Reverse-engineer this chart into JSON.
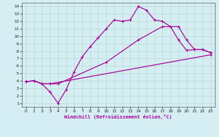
{
  "xlabel": "Windchill (Refroidissement éolien,°C)",
  "bg_color": "#d4eef4",
  "line_color": "#aa0099",
  "grid_color": "#b8d8cc",
  "xlim": [
    -0.5,
    23.5
  ],
  "ylim": [
    0.5,
    14.5
  ],
  "xticks": [
    0,
    1,
    2,
    3,
    4,
    5,
    6,
    7,
    8,
    9,
    10,
    11,
    12,
    13,
    14,
    15,
    16,
    17,
    18,
    19,
    20,
    21,
    22,
    23
  ],
  "yticks": [
    1,
    2,
    3,
    4,
    5,
    6,
    7,
    8,
    9,
    10,
    11,
    12,
    13,
    14
  ],
  "line1_x": [
    0,
    1,
    2,
    3,
    4,
    5,
    6,
    7,
    8,
    9,
    10,
    11,
    12,
    13,
    14,
    15,
    16,
    17,
    18,
    19,
    20,
    21,
    22,
    23
  ],
  "line1_y": [
    3.9,
    4.0,
    3.6,
    2.5,
    1.0,
    2.8,
    5.2,
    7.2,
    8.6,
    9.8,
    11.0,
    12.2,
    12.0,
    12.2,
    14.0,
    13.5,
    12.2,
    12.0,
    11.3,
    9.5,
    8.1,
    8.2,
    8.2,
    7.8
  ],
  "line2_x": [
    0,
    1,
    2,
    3,
    4,
    10,
    14,
    17,
    19,
    20,
    21,
    22,
    23
  ],
  "line2_y": [
    3.9,
    4.0,
    3.6,
    3.6,
    3.6,
    6.5,
    9.5,
    11.3,
    11.3,
    9.5,
    8.2,
    8.2,
    7.8
  ],
  "line3_x": [
    0,
    1,
    2,
    3,
    23
  ],
  "line3_y": [
    3.9,
    4.0,
    3.6,
    3.6,
    7.5
  ]
}
